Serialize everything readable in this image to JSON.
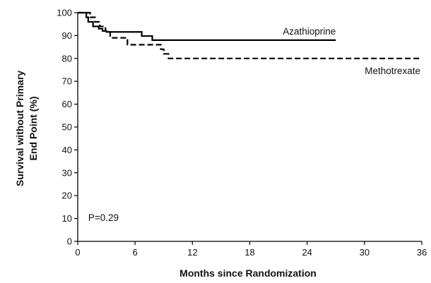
{
  "chart_data": {
    "type": "line",
    "title": "",
    "xlabel": "Months since Randomization",
    "ylabel_lines": [
      "Survival without Primary",
      "End Point (%)"
    ],
    "xlim": [
      0,
      36
    ],
    "ylim": [
      0,
      100
    ],
    "x_ticks": [
      "0",
      "6",
      "12",
      "18",
      "24",
      "30",
      "36"
    ],
    "y_ticks": [
      "0",
      "10",
      "20",
      "30",
      "40",
      "50",
      "60",
      "70",
      "80",
      "90",
      "100"
    ],
    "grid": false,
    "annotation": "P=0.29",
    "series": [
      {
        "name": "Azathioprine",
        "style": "solid",
        "color": "#000000",
        "points": [
          [
            0,
            100
          ],
          [
            0.9,
            100
          ],
          [
            0.9,
            98
          ],
          [
            1.1,
            98
          ],
          [
            1.1,
            96
          ],
          [
            1.6,
            96
          ],
          [
            1.6,
            94
          ],
          [
            2.2,
            94
          ],
          [
            2.2,
            93
          ],
          [
            2.6,
            93
          ],
          [
            2.6,
            92
          ],
          [
            3.0,
            92
          ],
          [
            3.0,
            91.6
          ],
          [
            6.7,
            91.6
          ],
          [
            6.7,
            89.8
          ],
          [
            7.8,
            89.8
          ],
          [
            7.8,
            88
          ],
          [
            27,
            88
          ]
        ]
      },
      {
        "name": "Methotrexate",
        "style": "dashed",
        "color": "#000000",
        "points": [
          [
            0,
            100
          ],
          [
            1.3,
            100
          ],
          [
            1.3,
            98
          ],
          [
            1.8,
            98
          ],
          [
            1.8,
            96
          ],
          [
            2.3,
            96
          ],
          [
            2.3,
            94
          ],
          [
            2.9,
            94
          ],
          [
            2.9,
            92
          ],
          [
            3.4,
            92
          ],
          [
            3.4,
            89
          ],
          [
            5.2,
            89
          ],
          [
            5.2,
            86
          ],
          [
            8.7,
            86
          ],
          [
            8.7,
            84
          ],
          [
            9.0,
            84
          ],
          [
            9.0,
            82
          ],
          [
            9.5,
            82
          ],
          [
            9.5,
            80
          ],
          [
            36,
            80
          ]
        ]
      }
    ]
  }
}
